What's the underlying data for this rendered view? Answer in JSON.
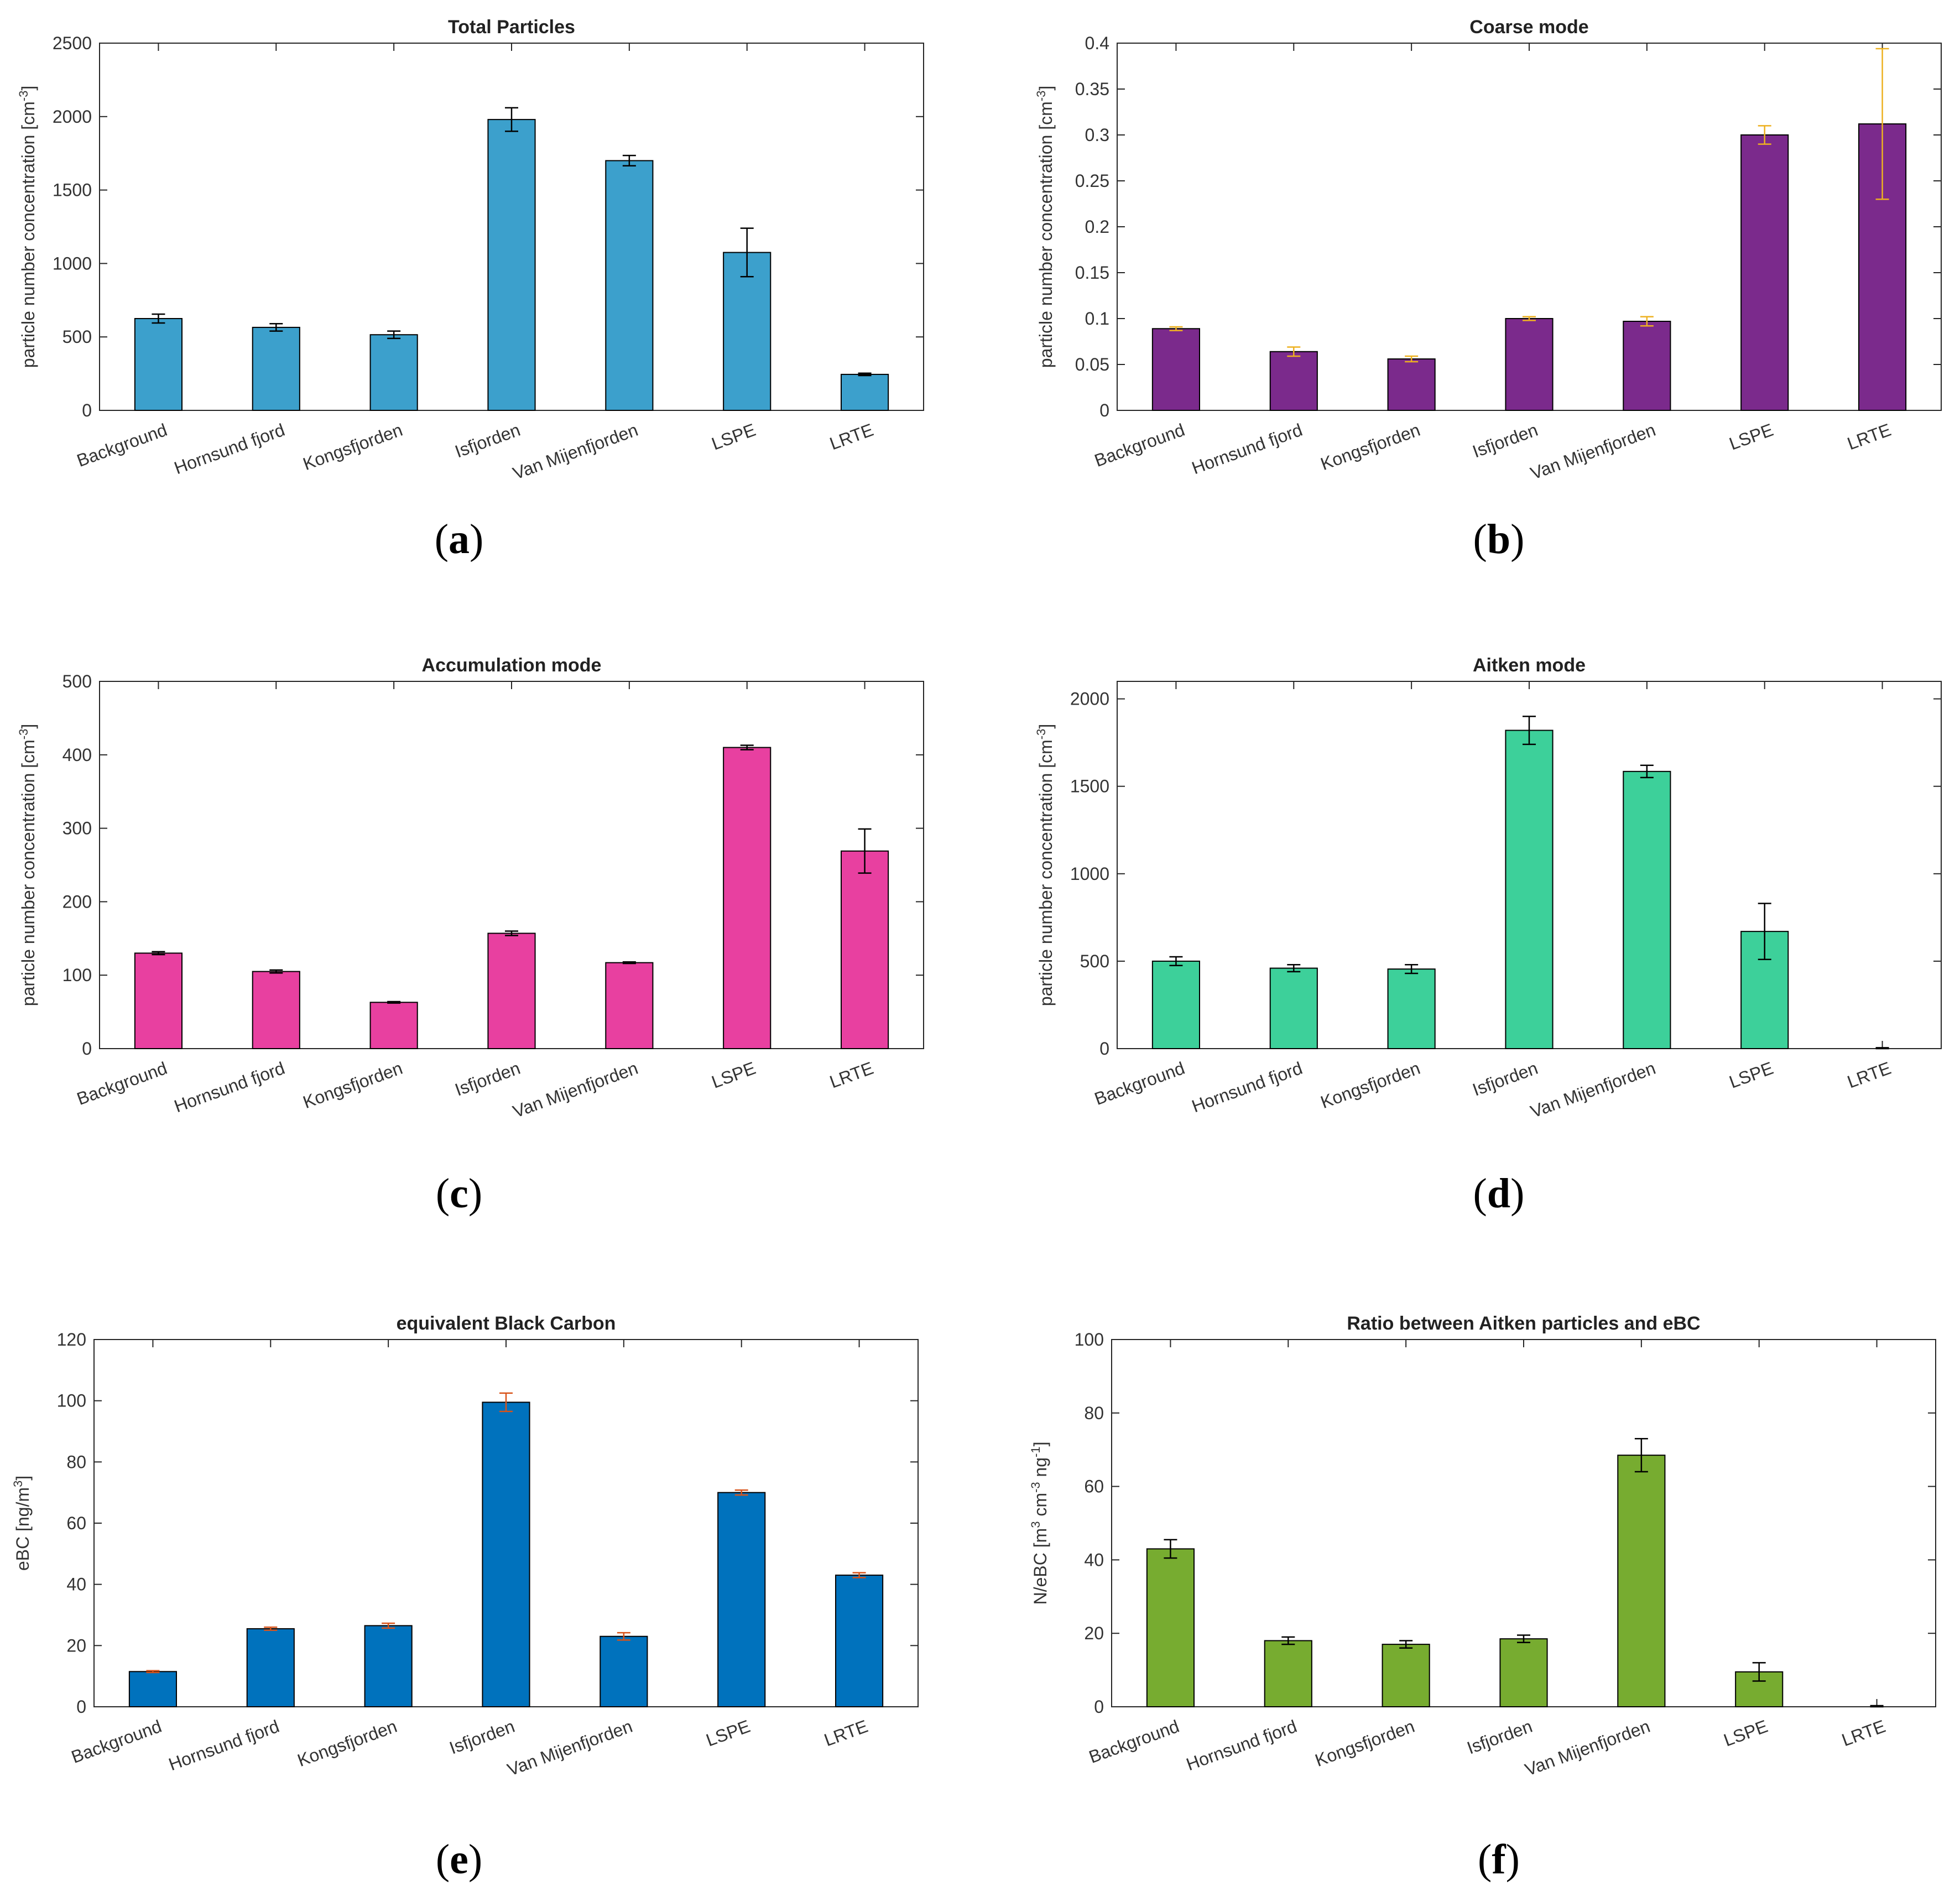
{
  "chart_data": [
    {
      "type": "bar",
      "panel": "(a)",
      "title": "Total Particles",
      "ylabel_main": "particle number concentration [cm",
      "ylabel_sup": "-3",
      "ylabel_end": "]",
      "categories": [
        "Background",
        "Hornsund fjord",
        "Kongsfjorden",
        "Isfjorden",
        "Van Mijenfjorden",
        "LSPE",
        "LRTE"
      ],
      "values": [
        625,
        565,
        515,
        1980,
        1700,
        1075,
        245
      ],
      "errors": [
        30,
        25,
        25,
        80,
        35,
        165,
        8
      ],
      "ylim": [
        0,
        2500
      ],
      "yticks": [
        0,
        500,
        1000,
        1500,
        2000,
        2500
      ],
      "bar_color": "#3CA0CC",
      "error_color": "#000000"
    },
    {
      "type": "bar",
      "panel": "(b)",
      "title": "Coarse mode",
      "ylabel_main": "particle number concentration [cm",
      "ylabel_sup": "-3",
      "ylabel_end": "]",
      "categories": [
        "Background",
        "Hornsund fjord",
        "Kongsfjorden",
        "Isfjorden",
        "Van Mijenfjorden",
        "LSPE",
        "LRTE"
      ],
      "values": [
        0.089,
        0.064,
        0.056,
        0.1,
        0.097,
        0.3,
        0.312
      ],
      "errors": [
        0.002,
        0.005,
        0.003,
        0.002,
        0.005,
        0.01,
        0.082
      ],
      "ylim": [
        0,
        0.4
      ],
      "yticks": [
        0,
        0.05,
        0.1,
        0.15,
        0.2,
        0.25,
        0.3,
        0.35,
        0.4
      ],
      "bar_color": "#7B2A8C",
      "error_color": "#EDB120"
    },
    {
      "type": "bar",
      "panel": "(c)",
      "title": "Accumulation mode",
      "ylabel_main": "particle number concentration [cm",
      "ylabel_sup": "-3",
      "ylabel_end": "]",
      "categories": [
        "Background",
        "Hornsund fjord",
        "Kongsfjorden",
        "Isfjorden",
        "Van Mijenfjorden",
        "LSPE",
        "LRTE"
      ],
      "values": [
        130,
        105,
        63,
        157,
        117,
        410,
        269
      ],
      "errors": [
        2,
        2,
        1,
        3,
        1,
        3,
        30
      ],
      "ylim": [
        0,
        500
      ],
      "yticks": [
        0,
        100,
        200,
        300,
        400,
        500
      ],
      "bar_color": "#E840A0",
      "error_color": "#000000"
    },
    {
      "type": "bar",
      "panel": "(d)",
      "title": "Aitken mode",
      "ylabel_main": "particle number concentration [cm",
      "ylabel_sup": "-3",
      "ylabel_end": "]",
      "categories": [
        "Background",
        "Hornsund fjord",
        "Kongsfjorden",
        "Isfjorden",
        "Van Mijenfjorden",
        "LSPE",
        "LRTE"
      ],
      "values": [
        500,
        460,
        455,
        1820,
        1585,
        670,
        0
      ],
      "errors": [
        25,
        20,
        25,
        80,
        35,
        160,
        5
      ],
      "ylim": [
        0,
        2100
      ],
      "yticks": [
        0,
        500,
        1000,
        1500,
        2000
      ],
      "bar_color": "#3DD09A",
      "error_color": "#000000"
    },
    {
      "type": "bar",
      "panel": "(e)",
      "title": "equivalent Black Carbon",
      "ylabel_main": "eBC [ng/m",
      "ylabel_sup": "3",
      "ylabel_end": "]",
      "categories": [
        "Background",
        "Hornsund fjord",
        "Kongsfjorden",
        "Isfjorden",
        "Van Mijenfjorden",
        "LSPE",
        "LRTE"
      ],
      "values": [
        11.5,
        25.5,
        26.5,
        99.5,
        23,
        70,
        43
      ],
      "errors": [
        0.3,
        0.5,
        0.8,
        3,
        1.2,
        0.8,
        0.8
      ],
      "ylim": [
        0,
        120
      ],
      "yticks": [
        0,
        20,
        40,
        60,
        80,
        100,
        120
      ],
      "bar_color": "#0072BD",
      "error_color": "#D95319"
    },
    {
      "type": "bar",
      "panel": "(f)",
      "title": "Ratio between Aitken particles and eBC",
      "ylabel_main": "N/eBC [m",
      "ylabel_sup": "3",
      "ylabel_mid": " cm",
      "ylabel_sup2": "-3",
      "ylabel_mid2": " ng",
      "ylabel_sup3": "-1",
      "ylabel_end": "]",
      "categories": [
        "Background",
        "Hornsund fjord",
        "Kongsfjorden",
        "Isfjorden",
        "Van Mijenfjorden",
        "LSPE",
        "LRTE"
      ],
      "values": [
        43,
        18,
        17,
        18.5,
        68.5,
        9.5,
        0
      ],
      "errors": [
        2.5,
        1,
        1,
        1,
        4.5,
        2.5,
        0.3
      ],
      "ylim": [
        0,
        100
      ],
      "yticks": [
        0,
        20,
        40,
        60,
        80,
        100
      ],
      "bar_color": "#77AC30",
      "error_color": "#000000"
    }
  ]
}
